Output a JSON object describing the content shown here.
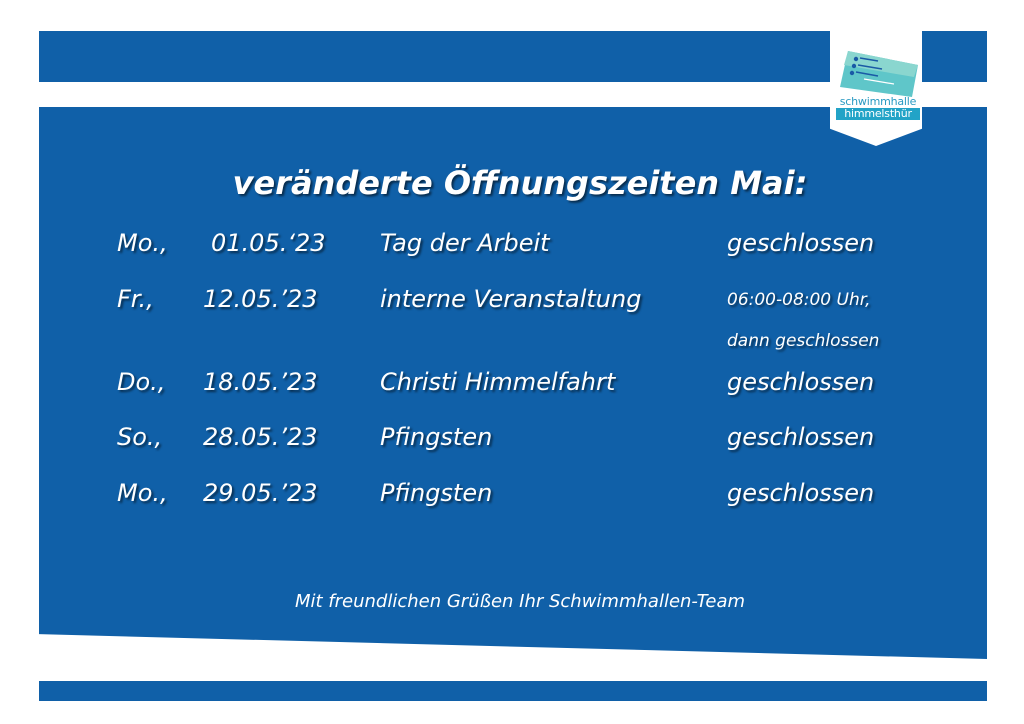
{
  "colors": {
    "primary_blue": "#1060a8",
    "logo_teal": "#22a3c7",
    "text": "#ffffff"
  },
  "logo": {
    "line1": "schwimmhalle",
    "line2": "himmelsthür"
  },
  "title": "veränderte Öffnungszeiten Mai:",
  "rows": [
    {
      "day": "Mo.,",
      "date": "01.05.‘23",
      "event": "Tag der Arbeit",
      "status": "geschlossen"
    },
    {
      "day": "Fr.,",
      "date": "12.05.’23",
      "event": "interne Veranstaltung",
      "status": "06:00-08:00 Uhr,",
      "note": "dann geschlossen"
    },
    {
      "day": "Do.,",
      "date": "18.05.’23",
      "event": "Christi Himmelfahrt",
      "status": "geschlossen"
    },
    {
      "day": "So.,",
      "date": "28.05.’23",
      "event": "Pfingsten",
      "status": "geschlossen"
    },
    {
      "day": "Mo.,",
      "date": "29.05.’23",
      "event": "Pfingsten",
      "status": "geschlossen"
    }
  ],
  "footer": "Mit freundlichen Grüßen Ihr Schwimmhallen-Team"
}
